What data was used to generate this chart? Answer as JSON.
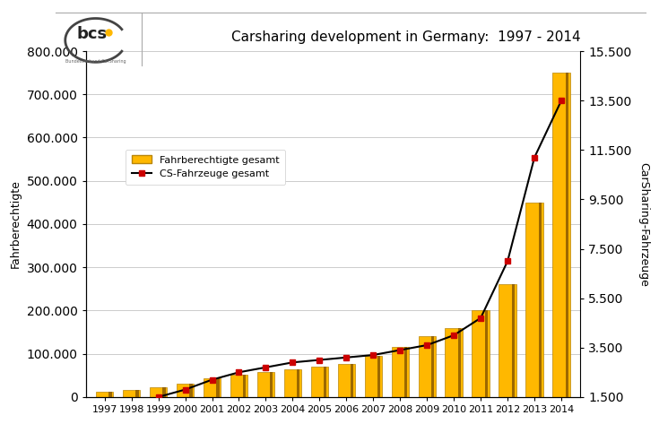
{
  "years": [
    1997,
    1998,
    1999,
    2000,
    2001,
    2002,
    2003,
    2004,
    2005,
    2006,
    2007,
    2008,
    2009,
    2010,
    2011,
    2012,
    2013,
    2014
  ],
  "fahrberechtite": [
    12000,
    17000,
    22000,
    30000,
    43000,
    52000,
    58000,
    65000,
    70000,
    77000,
    95000,
    115000,
    140000,
    160000,
    200000,
    260000,
    450000,
    750000
  ],
  "cs_fahrzeuge": [
    null,
    null,
    1500,
    1800,
    2200,
    2500,
    2700,
    2900,
    3000,
    3100,
    3200,
    3400,
    3600,
    4000,
    4700,
    7000,
    11200,
    13500
  ],
  "bar_color_main": "#FFB800",
  "bar_color_edge": "#B8860B",
  "bar_color_dark": "#8B5A00",
  "line_color": "#000000",
  "marker_color": "#CC0000",
  "title": "Carsharing development in Germany:  1997 - 2014",
  "ylabel_left": "Fahrberechtigte",
  "ylabel_right": "CarSharing-Fahrzeuge",
  "ylim_left": [
    0,
    800000
  ],
  "ylim_right": [
    1500,
    15500
  ],
  "yticks_left": [
    0,
    100000,
    200000,
    300000,
    400000,
    500000,
    600000,
    700000,
    800000
  ],
  "yticks_right": [
    1500,
    3500,
    5500,
    7500,
    9500,
    11500,
    13500,
    15500
  ],
  "legend_bar": "Fahrberechtigte gesamt",
  "legend_line": "CS-Fahrzeuge gesamt",
  "background_color": "#FFFFFF",
  "grid_color": "#CCCCCC",
  "figsize": [
    7.35,
    4.73
  ],
  "dpi": 100
}
